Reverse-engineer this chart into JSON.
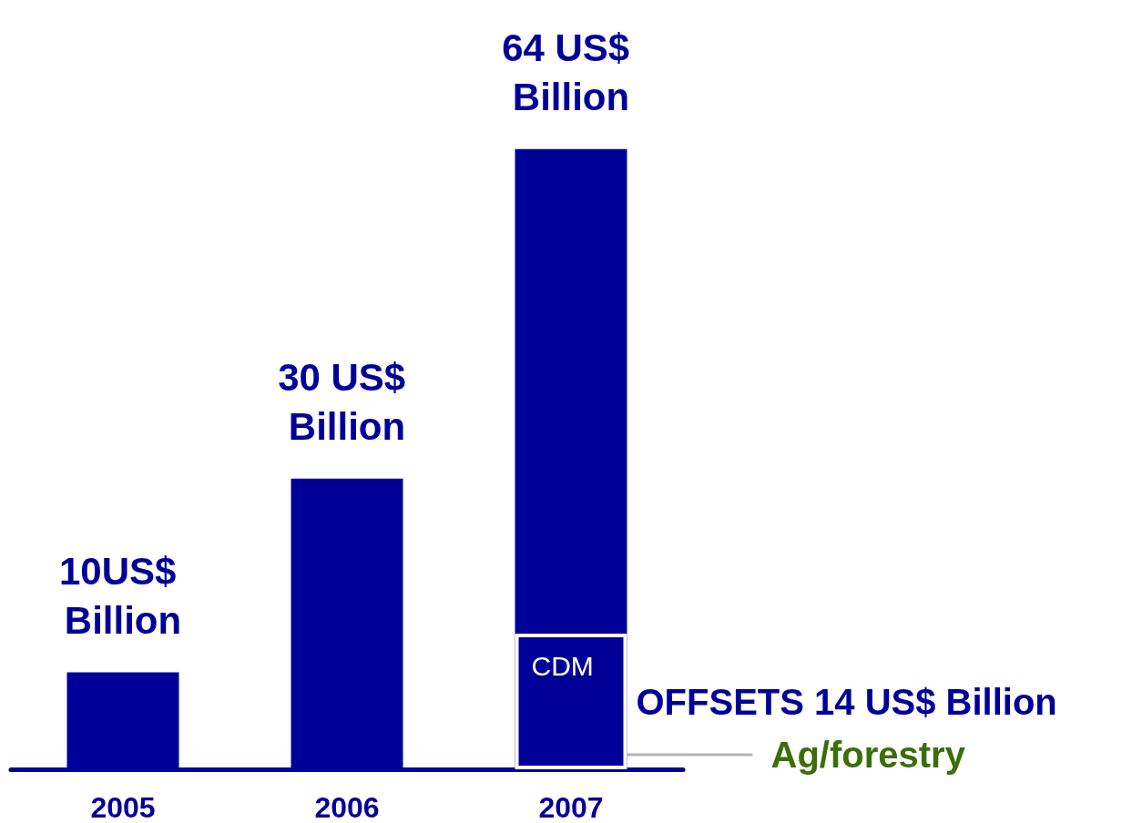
{
  "chart_data": {
    "type": "bar",
    "categories": [
      "2005",
      "2006",
      "2007"
    ],
    "series": [
      {
        "color": "#000099",
        "values": [
          10,
          30,
          64
        ],
        "value_labels": [
          "10US$ Billion",
          "30 US$ Billion",
          "64 US$ Billion"
        ]
      },
      {
        "name": "CDM",
        "color": "#000099",
        "values": [
          null,
          null,
          14
        ],
        "value_labels": [
          null,
          null,
          "OFFSETS 14 US$ Billion"
        ]
      }
    ],
    "annotations": [
      "Ag/forestry"
    ],
    "legend": false
  }
}
